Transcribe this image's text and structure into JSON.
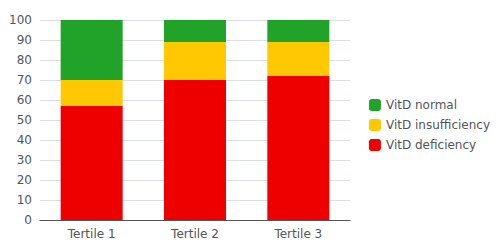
{
  "chart_data": {
    "type": "bar",
    "categories": [
      "Tertile 1",
      "Tertile 2",
      "Tertile 3"
    ],
    "series": [
      {
        "name": "VitD deficiency",
        "color": "#ee0000",
        "values": [
          57,
          70,
          72
        ]
      },
      {
        "name": "VitD insufficiency",
        "color": "#ffc800",
        "values": [
          13,
          19,
          17
        ]
      },
      {
        "name": "VitD normal",
        "color": "#21a329",
        "values": [
          30,
          11,
          11
        ]
      }
    ],
    "stacked": true,
    "ylim": [
      0,
      100
    ],
    "yticks": [
      0,
      10,
      20,
      30,
      40,
      50,
      60,
      70,
      80,
      90,
      100
    ],
    "grid": true,
    "legend": "right"
  }
}
